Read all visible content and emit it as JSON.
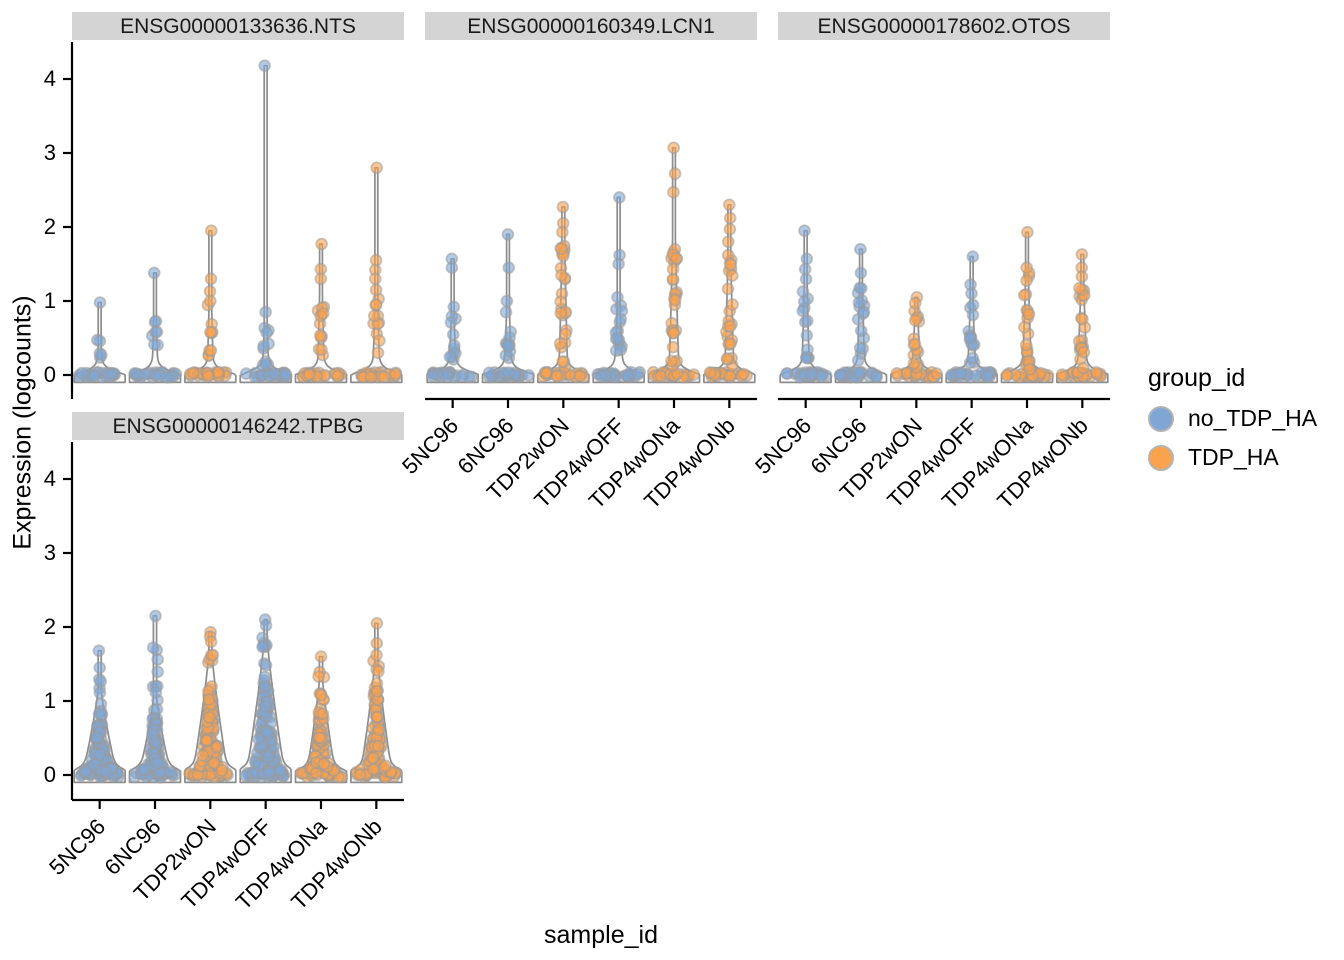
{
  "figure": {
    "y_axis_title": "Expression (logcounts)",
    "x_axis_title": "sample_id",
    "background": "#ffffff"
  },
  "legend": {
    "title": "group_id",
    "items": [
      {
        "label": "no_TDP_HA",
        "group": "no_TDP_HA"
      },
      {
        "label": "TDP_HA",
        "group": "TDP_HA"
      }
    ]
  },
  "chart_data": {
    "type": "violin-scatter",
    "title": "",
    "xlabel": "sample_id",
    "ylabel": "Expression (logcounts)",
    "y_ticks": [
      0,
      1,
      2,
      3,
      4
    ],
    "y_tick_labels": [
      "0",
      "1",
      "2",
      "3",
      "4"
    ],
    "ylim": [
      -0.3,
      4.5
    ],
    "categories": [
      "5NC96",
      "6NC96",
      "TDP2wON",
      "TDP4wOFF",
      "TDP4wONa",
      "TDP4wONb"
    ],
    "category_groups": [
      "no_TDP_HA",
      "no_TDP_HA",
      "TDP_HA",
      "no_TDP_HA",
      "TDP_HA",
      "TDP_HA"
    ],
    "groups": {
      "no_TDP_HA": "#7FA6D5",
      "TDP_HA": "#FBA24D"
    },
    "style": {
      "violin_stroke": "#8d8d8d",
      "violin_fill": "#f7f7f7",
      "point_stroke": "#9a9a9a",
      "axis_color": "#000000",
      "strip_bg": "#d4d4d4",
      "strip_text_color": "#1a1a1a"
    },
    "facets": [
      {
        "title": "ENSG00000133636.NTS",
        "violins": [
          {
            "sample": "5NC96",
            "group": "no_TDP_HA",
            "max": 0.98,
            "top_points": [
              0.98
            ],
            "column": {
              "lo": 0.22,
              "hi": 0.5,
              "n": 5
            },
            "base_n": 24,
            "shape": {
              "foot": 0.95,
              "stem": 0.05,
              "cone_hi": 0.55,
              "cone_hw": 0.05
            }
          },
          {
            "sample": "6NC96",
            "group": "no_TDP_HA",
            "max": 1.38,
            "top_points": [
              1.38
            ],
            "column": {
              "lo": 0.3,
              "hi": 0.8,
              "n": 7
            },
            "base_n": 26,
            "shape": {
              "foot": 0.95,
              "stem": 0.05,
              "cone_hi": 0.85,
              "cone_hw": 0.06
            }
          },
          {
            "sample": "TDP2wON",
            "group": "TDP_HA",
            "max": 1.95,
            "top_points": [
              1.95,
              1.3,
              1.13,
              1.0
            ],
            "column": {
              "lo": 0.25,
              "hi": 0.95,
              "n": 9
            },
            "base_n": 26,
            "shape": {
              "foot": 0.95,
              "stem": 0.05,
              "cone_hi": 1.0,
              "cone_hw": 0.07
            }
          },
          {
            "sample": "TDP4wOFF",
            "group": "no_TDP_HA",
            "max": 4.18,
            "top_points": [
              4.18,
              0.85
            ],
            "column": {
              "lo": 0.1,
              "hi": 0.7,
              "n": 10
            },
            "base_n": 28,
            "shape": {
              "foot": 0.95,
              "stem": 0.05,
              "cone_hi": 0.75,
              "cone_hw": 0.08
            }
          },
          {
            "sample": "TDP4wONa",
            "group": "TDP_HA",
            "max": 1.77,
            "top_points": [
              1.77,
              1.43,
              1.3
            ],
            "column": {
              "lo": 0.25,
              "hi": 1.15,
              "n": 13
            },
            "base_n": 26,
            "shape": {
              "foot": 0.95,
              "stem": 0.05,
              "cone_hi": 1.2,
              "cone_hw": 0.08
            }
          },
          {
            "sample": "TDP4wONb",
            "group": "TDP_HA",
            "max": 2.8,
            "top_points": [
              2.8,
              1.55,
              1.42,
              1.3,
              1.15
            ],
            "column": {
              "lo": 0.2,
              "hi": 1.05,
              "n": 11
            },
            "base_n": 26,
            "shape": {
              "foot": 0.95,
              "stem": 0.05,
              "cone_hi": 1.1,
              "cone_hw": 0.09
            }
          }
        ]
      },
      {
        "title": "ENSG00000160349.LCN1",
        "violins": [
          {
            "sample": "5NC96",
            "group": "no_TDP_HA",
            "max": 1.57,
            "top_points": [
              1.57,
              1.45,
              0.92
            ],
            "column": {
              "lo": 0.15,
              "hi": 0.8,
              "n": 11
            },
            "base_n": 24,
            "shape": {
              "foot": 0.95,
              "stem": 0.05,
              "cone_hi": 0.85,
              "cone_hw": 0.1
            }
          },
          {
            "sample": "6NC96",
            "group": "no_TDP_HA",
            "max": 1.9,
            "top_points": [
              1.9,
              1.45,
              1.0
            ],
            "column": {
              "lo": 0.2,
              "hi": 0.9,
              "n": 11
            },
            "base_n": 24,
            "shape": {
              "foot": 0.95,
              "stem": 0.05,
              "cone_hi": 0.95,
              "cone_hw": 0.1
            }
          },
          {
            "sample": "TDP2wON",
            "group": "TDP_HA",
            "max": 2.27,
            "top_points": [
              2.27,
              2.05,
              1.93
            ],
            "column": {
              "lo": 0.1,
              "hi": 1.8,
              "n": 26
            },
            "base_n": 26,
            "shape": {
              "foot": 0.95,
              "stem": 0.05,
              "cone_hi": 1.85,
              "cone_hw": 0.12
            }
          },
          {
            "sample": "TDP4wOFF",
            "group": "no_TDP_HA",
            "max": 2.4,
            "top_points": [
              2.4,
              1.62,
              1.5,
              1.05
            ],
            "column": {
              "lo": 0.15,
              "hi": 0.95,
              "n": 14
            },
            "base_n": 26,
            "shape": {
              "foot": 0.95,
              "stem": 0.05,
              "cone_hi": 1.0,
              "cone_hw": 0.12
            }
          },
          {
            "sample": "TDP4wONa",
            "group": "TDP_HA",
            "max": 3.07,
            "top_points": [
              3.07,
              2.72,
              2.47
            ],
            "column": {
              "lo": 0.1,
              "hi": 1.9,
              "n": 28
            },
            "base_n": 26,
            "shape": {
              "foot": 0.95,
              "stem": 0.05,
              "cone_hi": 1.95,
              "cone_hw": 0.14
            }
          },
          {
            "sample": "TDP4wONb",
            "group": "TDP_HA",
            "max": 2.3,
            "top_points": [
              2.3,
              2.12,
              1.97,
              1.8
            ],
            "column": {
              "lo": 0.1,
              "hi": 1.62,
              "n": 24
            },
            "base_n": 26,
            "shape": {
              "foot": 0.95,
              "stem": 0.05,
              "cone_hi": 1.7,
              "cone_hw": 0.13
            }
          }
        ]
      },
      {
        "title": "ENSG00000178602.OTOS",
        "violins": [
          {
            "sample": "5NC96",
            "group": "no_TDP_HA",
            "max": 1.95,
            "top_points": [
              1.95,
              1.57,
              1.43
            ],
            "column": {
              "lo": 0.1,
              "hi": 1.3,
              "n": 14
            },
            "base_n": 26,
            "shape": {
              "foot": 0.95,
              "stem": 0.05,
              "cone_hi": 1.35,
              "cone_hw": 0.1
            }
          },
          {
            "sample": "6NC96",
            "group": "no_TDP_HA",
            "max": 1.7,
            "top_points": [
              1.7,
              1.38
            ],
            "column": {
              "lo": 0.1,
              "hi": 1.3,
              "n": 16
            },
            "base_n": 26,
            "shape": {
              "foot": 0.95,
              "stem": 0.05,
              "cone_hi": 1.35,
              "cone_hw": 0.1
            }
          },
          {
            "sample": "TDP2wON",
            "group": "TDP_HA",
            "max": 1.05,
            "top_points": [
              1.05,
              0.97
            ],
            "column": {
              "lo": 0.05,
              "hi": 0.88,
              "n": 14
            },
            "base_n": 26,
            "shape": {
              "foot": 0.95,
              "stem": 0.05,
              "cone_hi": 0.9,
              "cone_hw": 0.12
            }
          },
          {
            "sample": "TDP4wOFF",
            "group": "no_TDP_HA",
            "max": 1.6,
            "top_points": [
              1.6,
              1.22,
              1.1
            ],
            "column": {
              "lo": 0.08,
              "hi": 1.0,
              "n": 14
            },
            "base_n": 26,
            "shape": {
              "foot": 0.95,
              "stem": 0.05,
              "cone_hi": 1.05,
              "cone_hw": 0.11
            }
          },
          {
            "sample": "TDP4wONa",
            "group": "TDP_HA",
            "max": 1.93,
            "top_points": [
              1.93,
              1.45
            ],
            "column": {
              "lo": 0.05,
              "hi": 1.38,
              "n": 22
            },
            "base_n": 26,
            "shape": {
              "foot": 0.95,
              "stem": 0.05,
              "cone_hi": 1.4,
              "cone_hw": 0.13
            }
          },
          {
            "sample": "TDP4wONb",
            "group": "TDP_HA",
            "max": 1.63,
            "top_points": [
              1.63,
              1.45,
              1.33
            ],
            "column": {
              "lo": 0.05,
              "hi": 1.32,
              "n": 20
            },
            "base_n": 26,
            "shape": {
              "foot": 0.95,
              "stem": 0.05,
              "cone_hi": 1.35,
              "cone_hw": 0.13
            }
          }
        ]
      },
      {
        "title": "ENSG00000146242.TPBG",
        "violins": [
          {
            "sample": "5NC96",
            "group": "no_TDP_HA",
            "max": 1.68,
            "top_points": [
              1.68,
              1.45
            ],
            "column": {
              "lo": 1.05,
              "hi": 1.35,
              "n": 4
            },
            "bulk": {
              "hi": 1.05,
              "n": 85
            },
            "base_n": 24,
            "shape": {
              "foot": 0.95,
              "stem": 0.06,
              "cone_hi": 1.15,
              "cone_hw": 0.6
            }
          },
          {
            "sample": "6NC96",
            "group": "no_TDP_HA",
            "max": 2.15,
            "top_points": [
              2.15
            ],
            "column": {
              "lo": 0.95,
              "hi": 1.8,
              "n": 9
            },
            "bulk": {
              "hi": 0.95,
              "n": 85
            },
            "base_n": 24,
            "shape": {
              "foot": 0.95,
              "stem": 0.06,
              "cone_hi": 1.05,
              "cone_hw": 0.55
            }
          },
          {
            "sample": "TDP2wON",
            "group": "TDP_HA",
            "max": 1.93,
            "top_points": [
              1.93,
              1.87,
              1.8
            ],
            "column": {
              "lo": 1.5,
              "hi": 1.75,
              "n": 5
            },
            "bulk": {
              "hi": 1.55,
              "n": 105
            },
            "base_n": 24,
            "shape": {
              "foot": 0.95,
              "stem": 0.06,
              "cone_hi": 1.65,
              "cone_hw": 0.62
            }
          },
          {
            "sample": "TDP4wOFF",
            "group": "no_TDP_HA",
            "max": 2.1,
            "top_points": [
              2.1,
              2.02
            ],
            "column": {
              "lo": 1.7,
              "hi": 1.95,
              "n": 6
            },
            "bulk": {
              "hi": 1.75,
              "n": 125
            },
            "base_n": 24,
            "shape": {
              "foot": 0.95,
              "stem": 0.06,
              "cone_hi": 1.85,
              "cone_hw": 0.68
            }
          },
          {
            "sample": "TDP4wONa",
            "group": "TDP_HA",
            "max": 1.6,
            "top_points": [
              1.6
            ],
            "column": {
              "lo": 1.25,
              "hi": 1.45,
              "n": 3
            },
            "bulk": {
              "hi": 1.2,
              "n": 80
            },
            "base_n": 24,
            "shape": {
              "foot": 0.95,
              "stem": 0.06,
              "cone_hi": 1.3,
              "cone_hw": 0.5
            }
          },
          {
            "sample": "TDP4wONb",
            "group": "TDP_HA",
            "max": 2.05,
            "top_points": [
              2.05,
              1.78,
              1.62
            ],
            "column": {
              "lo": 1.4,
              "hi": 1.55,
              "n": 3
            },
            "bulk": {
              "hi": 1.45,
              "n": 90
            },
            "base_n": 24,
            "shape": {
              "foot": 0.95,
              "stem": 0.06,
              "cone_hi": 1.55,
              "cone_hw": 0.55
            }
          }
        ]
      }
    ]
  }
}
